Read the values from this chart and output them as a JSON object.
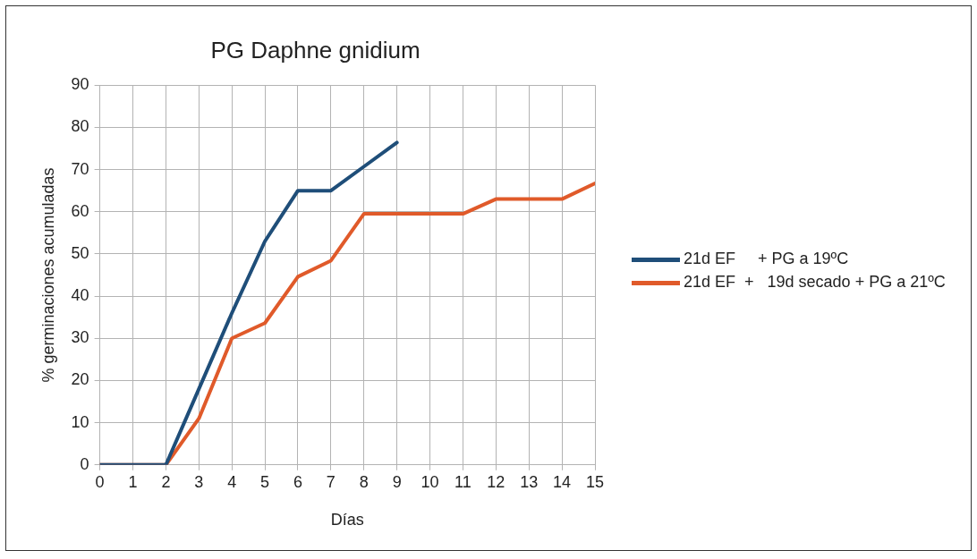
{
  "chart_data": {
    "type": "line",
    "title": "PG Daphne gnidium",
    "xlabel": "Días",
    "ylabel": "% germinaciones acumuladas",
    "x": [
      0,
      1,
      2,
      3,
      4,
      5,
      6,
      7,
      8,
      9,
      10,
      11,
      12,
      13,
      14,
      15
    ],
    "xlim": [
      0,
      15
    ],
    "xticks": [
      0,
      1,
      2,
      3,
      4,
      5,
      6,
      7,
      8,
      9,
      10,
      11,
      12,
      13,
      14,
      15
    ],
    "ylim": [
      0,
      90
    ],
    "yticks": [
      0,
      10,
      20,
      30,
      40,
      50,
      60,
      70,
      80,
      90
    ],
    "grid": true,
    "legend": "right",
    "marker": "none",
    "line_style": "solid",
    "series": [
      {
        "name": "21d EF     + PG a 19ºC",
        "color": "#1f4e79",
        "values": [
          0,
          0,
          0,
          18,
          36,
          53,
          65,
          65,
          70.7,
          76.4,
          null,
          null,
          null,
          null,
          null,
          null
        ]
      },
      {
        "name": "21d EF  +   19d secado + PG a 21ºC",
        "color": "#e05a2a",
        "values": [
          0,
          0,
          0,
          11,
          30,
          33.6,
          44.6,
          48.4,
          59.5,
          59.5,
          59.5,
          59.5,
          63,
          63,
          63,
          66.7
        ]
      }
    ]
  }
}
